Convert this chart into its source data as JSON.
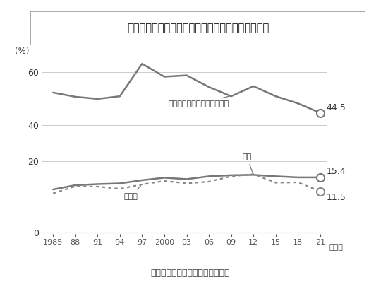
{
  "title": "「ひとり親世帯」の半分近くが月約１０万円の収入",
  "subtitle": "日本における相対的貧困率の推移",
  "years": [
    1985,
    1988,
    1991,
    1994,
    1997,
    2000,
    2003,
    2006,
    2009,
    2012,
    2015,
    2018,
    2021
  ],
  "single_parent": [
    52.2,
    50.6,
    49.8,
    50.8,
    63.1,
    58.2,
    58.7,
    54.3,
    50.8,
    54.6,
    50.8,
    48.1,
    44.5
  ],
  "overall": [
    12.0,
    13.2,
    13.5,
    13.7,
    14.6,
    15.3,
    14.9,
    15.7,
    16.0,
    16.1,
    15.7,
    15.4,
    15.4
  ],
  "children": [
    10.9,
    12.9,
    12.8,
    12.2,
    13.4,
    14.4,
    13.7,
    14.2,
    15.7,
    16.3,
    13.9,
    14.0,
    11.5
  ],
  "bg_color": "#ffffff",
  "line_color": "#888888",
  "tick_labels": [
    "1985",
    "88",
    "91",
    "94",
    "97",
    "2000",
    "03",
    "06",
    "09",
    "12",
    "15",
    "18",
    "21"
  ],
  "ylabel_top": "(%)",
  "year_label": "（年）",
  "label_single": "子どもがいて大人が一人世帯",
  "label_overall": "全体",
  "label_children": "子ども",
  "end_val_single": "44.5",
  "end_val_overall": "15.4",
  "end_val_children": "11.5"
}
